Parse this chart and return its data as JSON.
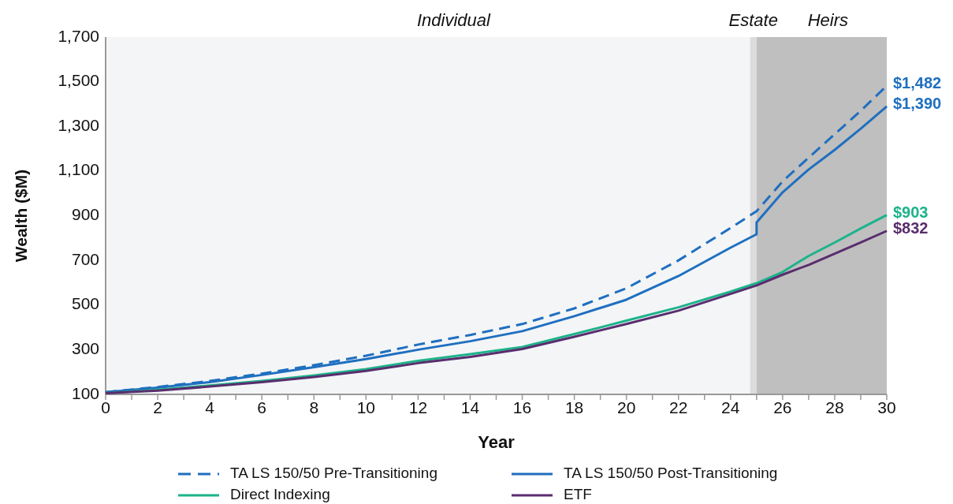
{
  "chart_data": {
    "type": "line",
    "xlabel": "Year",
    "ylabel": "Wealth ($M)",
    "xlim": [
      0,
      30
    ],
    "xticks": [
      0,
      {
        "value": 1,
        "label": null
      },
      2,
      {
        "value": 3,
        "label": null
      },
      4,
      {
        "value": 5,
        "label": null
      },
      6,
      {
        "value": 7,
        "label": null
      },
      8,
      {
        "value": 9,
        "label": null
      },
      10,
      {
        "value": 11,
        "label": null
      },
      12,
      {
        "value": 13,
        "label": null
      },
      14,
      {
        "value": 15,
        "label": null
      },
      16,
      {
        "value": 17,
        "label": null
      },
      18,
      {
        "value": 19,
        "label": null
      },
      20,
      {
        "value": 21,
        "label": null
      },
      22,
      {
        "value": 23,
        "label": null
      },
      24,
      {
        "value": 25,
        "label": null
      },
      26,
      {
        "value": 27,
        "label": null
      },
      28,
      {
        "value": 29,
        "label": null
      },
      30
    ],
    "ylim": [
      100,
      1700
    ],
    "yticks": [
      100,
      300,
      500,
      700,
      900,
      {
        "value": 1100,
        "label": "1,100"
      },
      {
        "value": 1300,
        "label": "1,300"
      },
      {
        "value": 1500,
        "label": "1,500"
      },
      {
        "value": 1700,
        "label": "1,700"
      }
    ],
    "grid": false,
    "legend": "bottom",
    "bands": [
      {
        "axis": "x",
        "from": 0,
        "to": 24.75,
        "label": "Individual",
        "color": "#f3f5f7"
      },
      {
        "axis": "x",
        "from": 24.75,
        "to": 25,
        "label": "Estate",
        "color": "#dcdcdc"
      },
      {
        "axis": "x",
        "from": 25,
        "to": 30,
        "label": "Heirs",
        "color": "#bfbfbf"
      }
    ],
    "series": [
      {
        "name": "TA LS 150/50 Pre-Transitioning",
        "color": "#1f6fbf",
        "line_style": "dashed",
        "x": [
          0,
          2,
          4,
          6,
          8,
          10,
          12,
          14,
          16,
          18,
          20,
          22,
          24,
          25,
          26,
          27,
          28,
          29,
          30
        ],
        "values": [
          110,
          133,
          160,
          193,
          231,
          273,
          323,
          366,
          415,
          485,
          575,
          700,
          845,
          920,
          1054,
          1160,
          1265,
          1370,
          1482
        ],
        "value_labels": [
          null,
          null,
          null,
          null,
          null,
          null,
          null,
          null,
          null,
          null,
          null,
          null,
          null,
          null,
          null,
          null,
          null,
          null,
          "$1,482"
        ]
      },
      {
        "name": "TA LS 150/50 Post-Transitioning",
        "color": "#1f6fbf",
        "line_style": "solid",
        "x": [
          0,
          2,
          4,
          6,
          8,
          10,
          12,
          14,
          16,
          18,
          20,
          22,
          24,
          25,
          25,
          26,
          27,
          28,
          29,
          30
        ],
        "values": [
          110,
          130,
          155,
          187,
          222,
          258,
          300,
          338,
          383,
          450,
          524,
          630,
          757,
          817,
          870,
          1005,
          1107,
          1195,
          1290,
          1390
        ],
        "value_labels": [
          null,
          null,
          null,
          null,
          null,
          null,
          null,
          null,
          null,
          null,
          null,
          null,
          null,
          null,
          null,
          null,
          null,
          null,
          null,
          "$1,390"
        ]
      },
      {
        "name": "Direct Indexing",
        "color": "#1db38a",
        "line_style": "solid",
        "x": [
          0,
          2,
          4,
          6,
          8,
          10,
          12,
          14,
          16,
          18,
          20,
          22,
          24,
          25,
          26,
          27,
          28,
          29,
          30
        ],
        "values": [
          105,
          120,
          140,
          160,
          185,
          213,
          250,
          280,
          312,
          370,
          430,
          490,
          560,
          598,
          648,
          720,
          780,
          843,
          903
        ],
        "value_labels": [
          null,
          null,
          null,
          null,
          null,
          null,
          null,
          null,
          null,
          null,
          null,
          null,
          null,
          null,
          null,
          null,
          null,
          null,
          "$903"
        ]
      },
      {
        "name": "ETF",
        "color": "#5a2d6e",
        "line_style": "solid",
        "x": [
          0,
          2,
          4,
          6,
          8,
          10,
          12,
          14,
          16,
          18,
          20,
          22,
          24,
          25,
          26,
          27,
          28,
          29,
          30
        ],
        "values": [
          105,
          117,
          135,
          155,
          178,
          205,
          240,
          268,
          303,
          358,
          415,
          475,
          550,
          588,
          636,
          680,
          730,
          780,
          832
        ],
        "value_labels": [
          null,
          null,
          null,
          null,
          null,
          null,
          null,
          null,
          null,
          null,
          null,
          null,
          null,
          null,
          null,
          null,
          null,
          null,
          "$832"
        ]
      }
    ]
  }
}
